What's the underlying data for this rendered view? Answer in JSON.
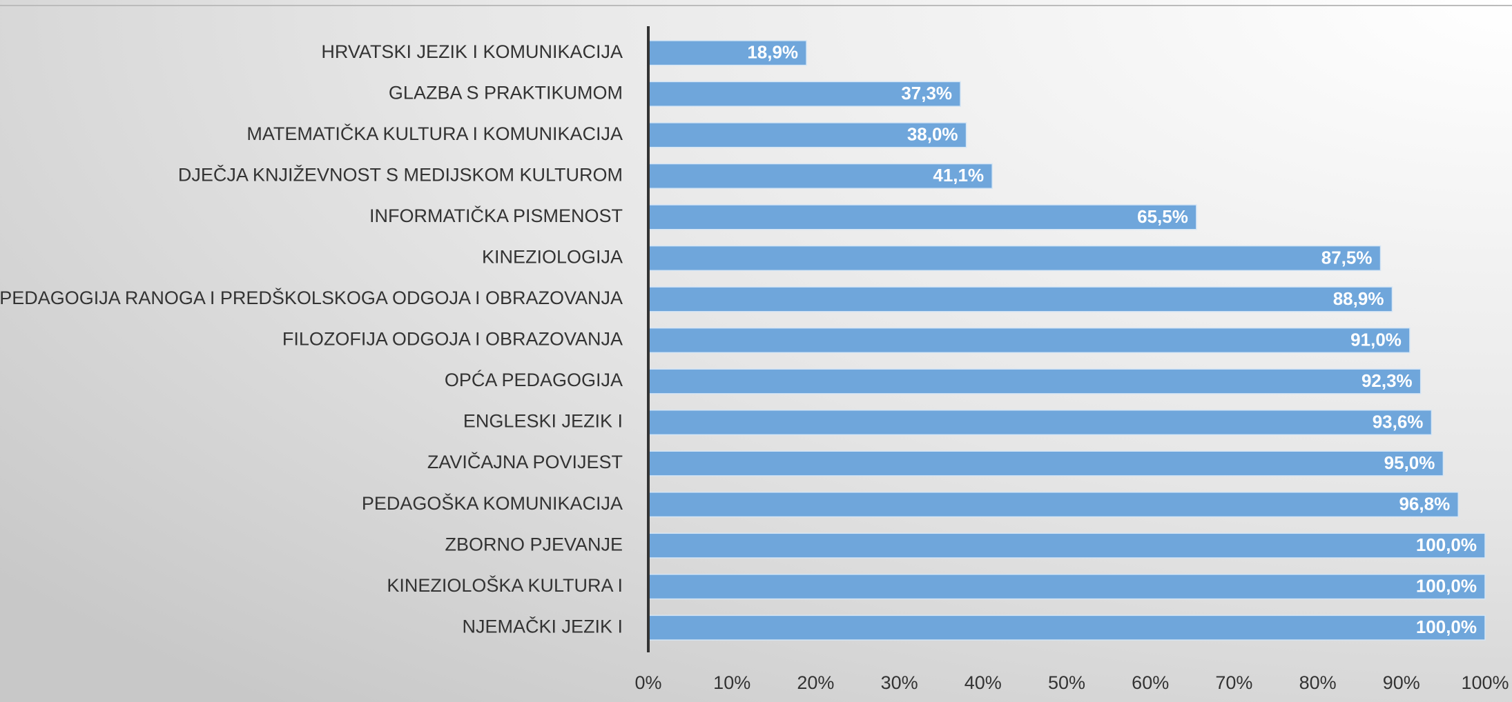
{
  "chart_data": {
    "type": "bar",
    "orientation": "horizontal",
    "categories": [
      "HRVATSKI JEZIK I KOMUNIKACIJA",
      "GLAZBA S PRAKTIKUMOM",
      "MATEMATIČKA KULTURA I KOMUNIKACIJA",
      "DJEČJA KNJIŽEVNOST S MEDIJSKOM KULTUROM",
      "INFORMATIČKA PISMENOST",
      "KINEZIOLOGIJA",
      "PEDAGOGIJA RANOGA I PREDŠKOLSKOGA ODGOJA I OBRAZOVANJA",
      "FILOZOFIJA ODGOJA I OBRAZOVANJA",
      "OPĆA PEDAGOGIJA",
      "ENGLESKI JEZIK I",
      "ZAVIČAJNA POVIJEST",
      "PEDAGOŠKA KOMUNIKACIJA",
      "ZBORNO PJEVANJE",
      "KINEZIOLOŠKA KULTURA I",
      "NJEMAČKI JEZIK I"
    ],
    "values": [
      18.9,
      37.3,
      38.0,
      41.1,
      65.5,
      87.5,
      88.9,
      91.0,
      92.3,
      93.6,
      95.0,
      96.8,
      100.0,
      100.0,
      100.0
    ],
    "value_labels": [
      "18,9%",
      "37,3%",
      "38,0%",
      "41,1%",
      "65,5%",
      "87,5%",
      "88,9%",
      "91,0%",
      "92,3%",
      "93,6%",
      "95,0%",
      "96,8%",
      "100,0%",
      "100,0%",
      "100,0%"
    ],
    "color": "#6fa6db",
    "xlim": [
      0,
      100
    ],
    "xticks": [
      {
        "value": 0,
        "label": "0%"
      },
      {
        "value": 10,
        "label": "10%"
      },
      {
        "value": 20,
        "label": "20%"
      },
      {
        "value": 30,
        "label": "30%"
      },
      {
        "value": 40,
        "label": "40%"
      },
      {
        "value": 50,
        "label": "50%"
      },
      {
        "value": 60,
        "label": "60%"
      },
      {
        "value": 70,
        "label": "70%"
      },
      {
        "value": 80,
        "label": "80%"
      },
      {
        "value": 90,
        "label": "90%"
      },
      {
        "value": 100,
        "label": "100%"
      }
    ],
    "grid": false
  }
}
